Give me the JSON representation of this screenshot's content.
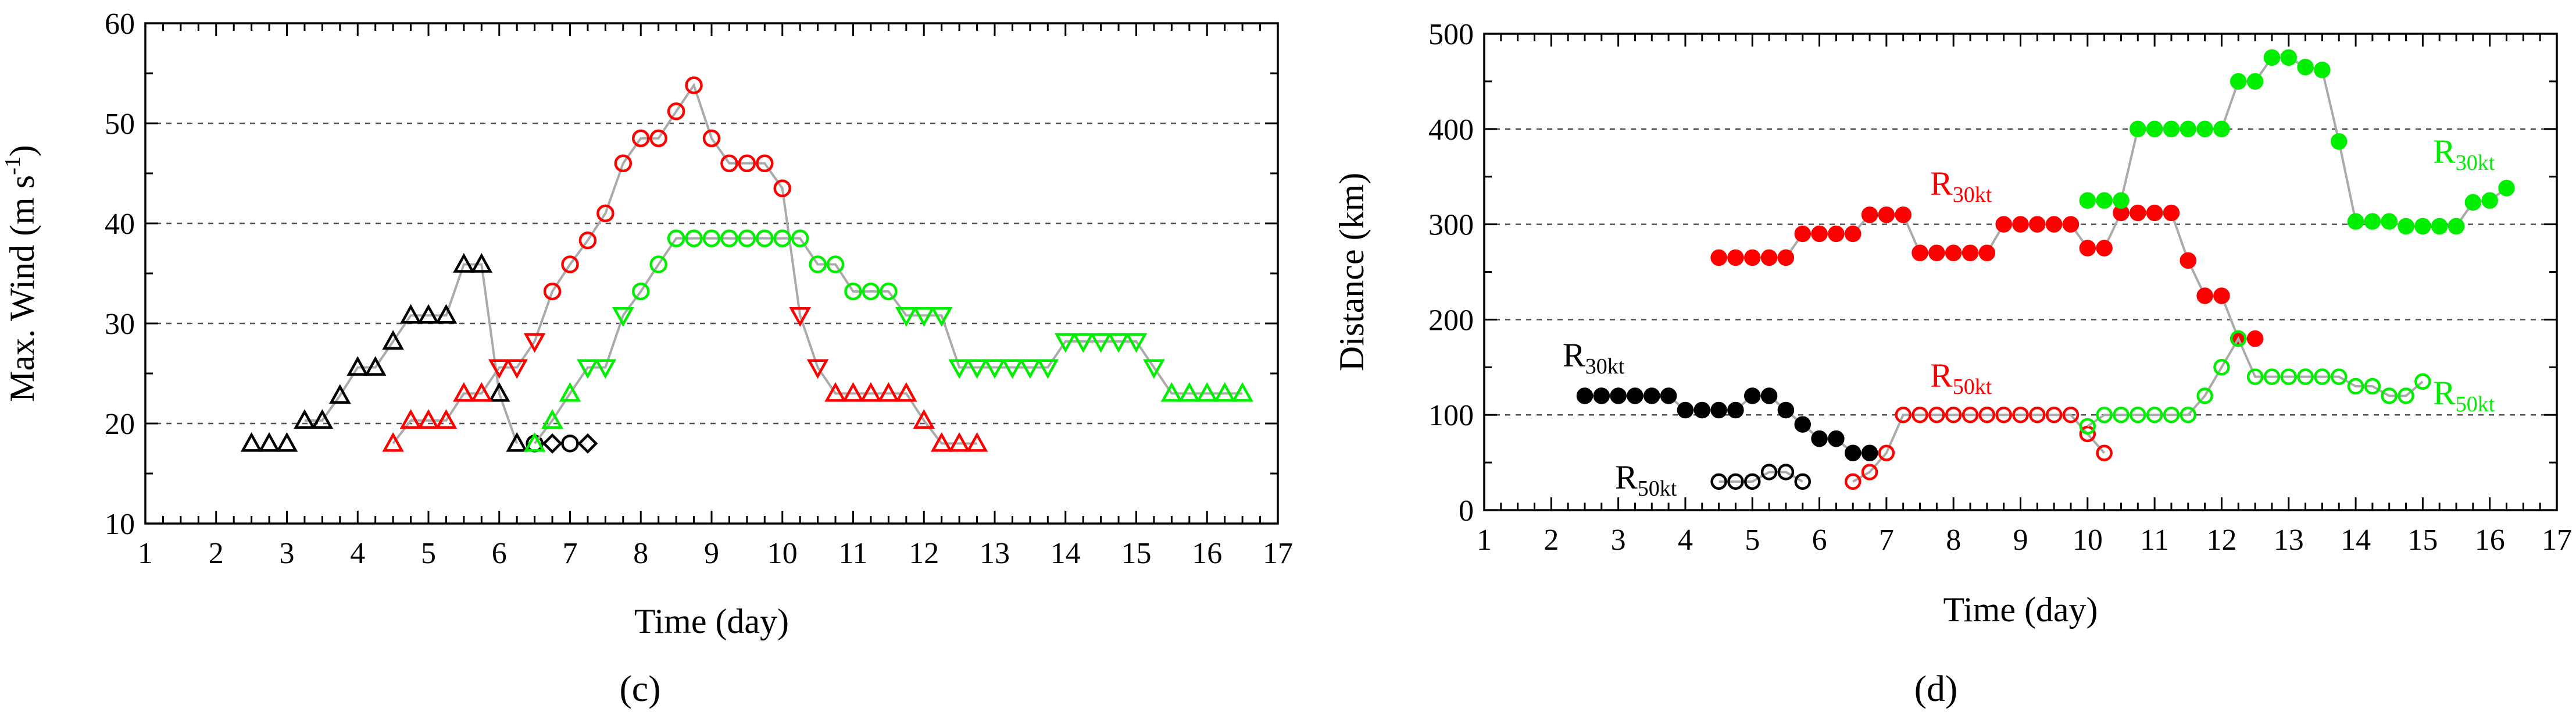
{
  "chart_data": [
    {
      "type": "scatter",
      "panel_label": "(c)",
      "xlabel": "Time (day)",
      "ylabel": "Max. Wind (m s",
      "ylabel_sup": "-1",
      "ylabel_end": ")",
      "xlim": [
        1,
        17
      ],
      "ylim": [
        10,
        60
      ],
      "xticks": [
        "1",
        "2",
        "3",
        "4",
        "5",
        "6",
        "7",
        "8",
        "9",
        "10",
        "11",
        "12",
        "13",
        "14",
        "15",
        "16",
        "17"
      ],
      "yticks": [
        "10",
        "20",
        "30",
        "40",
        "50",
        "60"
      ],
      "grid": "horizontal dashed",
      "series": [
        {
          "marker": "triangle-up",
          "color": "#000000",
          "connected": false,
          "points": [
            [
              2.5,
              18
            ],
            [
              2.75,
              18
            ],
            [
              3.0,
              18
            ]
          ]
        },
        {
          "marker": "triangle-up",
          "color": "#000000",
          "connected": true,
          "points": [
            [
              3.25,
              20.3
            ],
            [
              3.5,
              20.3
            ],
            [
              3.75,
              22.8
            ],
            [
              4.0,
              25.6
            ],
            [
              4.25,
              25.6
            ],
            [
              4.5,
              28.2
            ],
            [
              4.75,
              30.8
            ],
            [
              5.0,
              30.8
            ],
            [
              5.25,
              30.8
            ],
            [
              5.5,
              35.9
            ],
            [
              5.75,
              35.9
            ],
            [
              6.0,
              23
            ],
            [
              6.25,
              18
            ]
          ]
        },
        {
          "marker": "symbols",
          "color": "#000000",
          "connected": false,
          "points": [
            [
              6.5,
              18
            ],
            [
              6.75,
              18
            ],
            [
              7.0,
              18
            ],
            [
              7.25,
              18
            ]
          ]
        },
        {
          "marker": "mixed",
          "color": "#ff0000",
          "connected": true,
          "points": [
            [
              4.5,
              18
            ],
            [
              4.75,
              20.3
            ],
            [
              5.0,
              20.3
            ],
            [
              5.25,
              20.3
            ],
            [
              5.5,
              23
            ],
            [
              5.75,
              23
            ],
            [
              6.0,
              25.6
            ],
            [
              6.25,
              25.6
            ],
            [
              6.5,
              28.2
            ],
            [
              6.75,
              33.2
            ],
            [
              7.0,
              35.9
            ],
            [
              7.25,
              38.3
            ],
            [
              7.5,
              41
            ],
            [
              7.75,
              46
            ],
            [
              8.0,
              48.5
            ],
            [
              8.25,
              48.5
            ],
            [
              8.5,
              51.2
            ],
            [
              8.75,
              53.8
            ],
            [
              9.0,
              48.5
            ],
            [
              9.25,
              46
            ],
            [
              9.5,
              46
            ],
            [
              9.75,
              46
            ],
            [
              10.0,
              43.5
            ],
            [
              10.25,
              30.8
            ],
            [
              10.5,
              25.6
            ],
            [
              10.75,
              23
            ],
            [
              11.0,
              23
            ],
            [
              11.25,
              23
            ],
            [
              11.5,
              23
            ],
            [
              11.75,
              23
            ],
            [
              12.0,
              20.3
            ],
            [
              12.25,
              18
            ],
            [
              12.5,
              18
            ],
            [
              12.75,
              18
            ]
          ]
        },
        {
          "marker": "mixed",
          "color": "#00ee00",
          "connected": true,
          "points": [
            [
              6.5,
              18
            ],
            [
              6.75,
              20.3
            ],
            [
              7.0,
              23
            ],
            [
              7.25,
              25.6
            ],
            [
              7.5,
              25.6
            ],
            [
              7.75,
              30.8
            ],
            [
              8.0,
              33.2
            ],
            [
              8.25,
              35.9
            ],
            [
              8.5,
              38.5
            ],
            [
              8.75,
              38.5
            ],
            [
              9.0,
              38.5
            ],
            [
              9.25,
              38.5
            ],
            [
              9.5,
              38.5
            ],
            [
              9.75,
              38.5
            ],
            [
              10.0,
              38.5
            ],
            [
              10.25,
              38.5
            ],
            [
              10.5,
              35.9
            ],
            [
              10.75,
              35.9
            ],
            [
              11.0,
              33.2
            ],
            [
              11.25,
              33.2
            ],
            [
              11.5,
              33.2
            ],
            [
              11.75,
              30.8
            ],
            [
              12.0,
              30.8
            ],
            [
              12.25,
              30.8
            ],
            [
              12.5,
              25.6
            ],
            [
              12.75,
              25.6
            ],
            [
              13.0,
              25.6
            ],
            [
              13.25,
              25.6
            ],
            [
              13.5,
              25.6
            ],
            [
              13.75,
              25.6
            ],
            [
              14.0,
              28.2
            ],
            [
              14.25,
              28.2
            ],
            [
              14.5,
              28.2
            ],
            [
              14.75,
              28.2
            ],
            [
              15.0,
              28.2
            ],
            [
              15.25,
              25.6
            ],
            [
              15.5,
              23
            ],
            [
              15.75,
              23
            ],
            [
              16.0,
              23
            ],
            [
              16.25,
              23
            ],
            [
              16.5,
              23
            ]
          ]
        }
      ]
    },
    {
      "type": "scatter",
      "panel_label": "(d)",
      "xlabel": "Time (day)",
      "ylabel": "Distance (km)",
      "xlim": [
        1,
        17
      ],
      "ylim": [
        0,
        500
      ],
      "xticks": [
        "1",
        "2",
        "3",
        "4",
        "5",
        "6",
        "7",
        "8",
        "9",
        "10",
        "11",
        "12",
        "13",
        "14",
        "15",
        "16",
        "17"
      ],
      "yticks": [
        "0",
        "100",
        "200",
        "300",
        "400",
        "500"
      ],
      "grid": "horizontal dashed",
      "annotations": [
        {
          "main": "R",
          "sub": "30kt",
          "color": "#000000"
        },
        {
          "main": "R",
          "sub": "50kt",
          "color": "#000000"
        },
        {
          "main": "R",
          "sub": "30kt",
          "color": "#ff0000"
        },
        {
          "main": "R",
          "sub": "50kt",
          "color": "#ff0000"
        },
        {
          "main": "R",
          "sub": "30kt",
          "color": "#00ee00"
        },
        {
          "main": "R",
          "sub": "50kt",
          "color": "#00ee00"
        }
      ],
      "series": [
        {
          "name": "R30kt",
          "color": "#000000",
          "filled": true,
          "points": [
            [
              2.5,
              120
            ],
            [
              2.75,
              120
            ],
            [
              3.0,
              120
            ],
            [
              3.25,
              120
            ],
            [
              3.5,
              120
            ],
            [
              3.75,
              120
            ],
            [
              4.0,
              105
            ],
            [
              4.25,
              105
            ],
            [
              4.5,
              105
            ],
            [
              4.75,
              105
            ],
            [
              5.0,
              120
            ],
            [
              5.25,
              120
            ],
            [
              5.5,
              105
            ],
            [
              5.75,
              90
            ],
            [
              6.0,
              75
            ],
            [
              6.25,
              75
            ],
            [
              6.5,
              60
            ],
            [
              6.75,
              60
            ]
          ]
        },
        {
          "name": "R50kt",
          "color": "#000000",
          "filled": false,
          "points": [
            [
              4.5,
              30
            ],
            [
              4.75,
              30
            ],
            [
              5.0,
              30
            ],
            [
              5.25,
              40
            ],
            [
              5.5,
              40
            ],
            [
              5.75,
              30
            ]
          ]
        },
        {
          "name": "R30kt",
          "color": "#ff0000",
          "filled": true,
          "points": [
            [
              4.5,
              265
            ],
            [
              4.75,
              265
            ],
            [
              5.0,
              265
            ],
            [
              5.25,
              265
            ],
            [
              5.5,
              265
            ],
            [
              5.75,
              290
            ],
            [
              6.0,
              290
            ],
            [
              6.25,
              290
            ],
            [
              6.5,
              290
            ],
            [
              6.75,
              310
            ],
            [
              7.0,
              310
            ],
            [
              7.25,
              310
            ],
            [
              7.5,
              270
            ],
            [
              7.75,
              270
            ],
            [
              8.0,
              270
            ],
            [
              8.25,
              270
            ],
            [
              8.5,
              270
            ],
            [
              8.75,
              300
            ],
            [
              9.0,
              300
            ],
            [
              9.25,
              300
            ],
            [
              9.5,
              300
            ],
            [
              9.75,
              300
            ],
            [
              10.0,
              275
            ],
            [
              10.25,
              275
            ],
            [
              10.5,
              312
            ],
            [
              10.75,
              312
            ],
            [
              11.0,
              312
            ],
            [
              11.25,
              312
            ],
            [
              11.5,
              262
            ],
            [
              11.75,
              225
            ],
            [
              12.0,
              225
            ],
            [
              12.25,
              180
            ],
            [
              12.5,
              180
            ]
          ]
        },
        {
          "name": "R50kt",
          "color": "#ff0000",
          "filled": false,
          "points": [
            [
              6.5,
              30
            ],
            [
              6.75,
              40
            ],
            [
              7.0,
              60
            ],
            [
              7.25,
              100
            ],
            [
              7.5,
              100
            ],
            [
              7.75,
              100
            ],
            [
              8.0,
              100
            ],
            [
              8.25,
              100
            ],
            [
              8.5,
              100
            ],
            [
              8.75,
              100
            ],
            [
              9.0,
              100
            ],
            [
              9.25,
              100
            ],
            [
              9.5,
              100
            ],
            [
              9.75,
              100
            ],
            [
              10.0,
              80
            ],
            [
              10.25,
              60
            ]
          ]
        },
        {
          "name": "R30kt",
          "color": "#00ee00",
          "filled": true,
          "points": [
            [
              10.0,
              325
            ],
            [
              10.25,
              325
            ],
            [
              10.5,
              325
            ],
            [
              10.75,
              400
            ],
            [
              11.0,
              400
            ],
            [
              11.25,
              400
            ],
            [
              11.5,
              400
            ],
            [
              11.75,
              400
            ],
            [
              12.0,
              400
            ],
            [
              12.25,
              450
            ],
            [
              12.5,
              450
            ],
            [
              12.75,
              475
            ],
            [
              13.0,
              475
            ],
            [
              13.25,
              465
            ],
            [
              13.5,
              462
            ],
            [
              13.75,
              387
            ],
            [
              14.0,
              303
            ],
            [
              14.25,
              303
            ],
            [
              14.5,
              303
            ],
            [
              14.75,
              298
            ],
            [
              15.0,
              298
            ],
            [
              15.25,
              298
            ],
            [
              15.5,
              298
            ],
            [
              15.75,
              323
            ],
            [
              16.0,
              325
            ],
            [
              16.25,
              338
            ]
          ]
        },
        {
          "name": "R50kt",
          "color": "#00ee00",
          "filled": false,
          "points": [
            [
              10.0,
              88
            ],
            [
              10.25,
              100
            ],
            [
              10.5,
              100
            ],
            [
              10.75,
              100
            ],
            [
              11.0,
              100
            ],
            [
              11.25,
              100
            ],
            [
              11.5,
              100
            ],
            [
              11.75,
              120
            ],
            [
              12.0,
              150
            ],
            [
              12.25,
              180
            ],
            [
              12.5,
              140
            ],
            [
              12.75,
              140
            ],
            [
              13.0,
              140
            ],
            [
              13.25,
              140
            ],
            [
              13.5,
              140
            ],
            [
              13.75,
              140
            ],
            [
              14.0,
              130
            ],
            [
              14.25,
              130
            ],
            [
              14.5,
              120
            ],
            [
              14.75,
              120
            ],
            [
              15.0,
              135
            ]
          ]
        }
      ]
    }
  ]
}
